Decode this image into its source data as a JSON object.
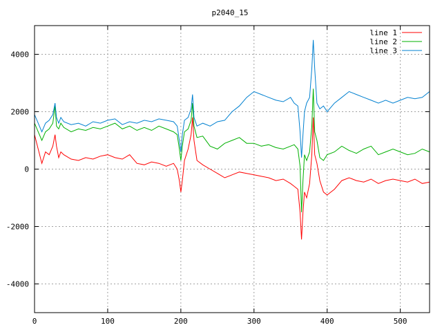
{
  "chart_data": {
    "type": "line",
    "title": "p2040_15",
    "xlabel": "",
    "ylabel": "",
    "xlim": [
      0,
      540
    ],
    "ylim": [
      -5000,
      5000
    ],
    "xticks": [
      0,
      100,
      200,
      300,
      400,
      500
    ],
    "yticks": [
      -4000,
      -2000,
      0,
      2000,
      4000
    ],
    "grid": true,
    "legend_position": "top-right",
    "series": [
      {
        "name": "line 1",
        "color": "#ff0000",
        "x": [
          0,
          5,
          10,
          15,
          20,
          25,
          28,
          30,
          33,
          36,
          40,
          50,
          60,
          70,
          80,
          90,
          100,
          110,
          120,
          130,
          140,
          150,
          160,
          170,
          180,
          190,
          195,
          198,
          200,
          202,
          205,
          210,
          214,
          216,
          218,
          222,
          230,
          240,
          250,
          260,
          270,
          280,
          290,
          300,
          310,
          320,
          330,
          340,
          350,
          355,
          360,
          363,
          365,
          367,
          369,
          372,
          376,
          379,
          381,
          383,
          386,
          390,
          395,
          400,
          410,
          420,
          430,
          440,
          450,
          460,
          470,
          480,
          490,
          500,
          510,
          520,
          530,
          540
        ],
        "y": [
          1200,
          700,
          200,
          600,
          500,
          800,
          1200,
          800,
          400,
          600,
          500,
          350,
          300,
          400,
          350,
          450,
          500,
          400,
          350,
          500,
          200,
          150,
          250,
          200,
          100,
          200,
          0,
          -400,
          -800,
          -400,
          300,
          700,
          1200,
          1800,
          1000,
          300,
          150,
          0,
          -150,
          -300,
          -200,
          -100,
          -150,
          -200,
          -250,
          -300,
          -400,
          -350,
          -500,
          -600,
          -700,
          -1500,
          -2450,
          -1500,
          -800,
          -1000,
          -500,
          500,
          1800,
          500,
          200,
          -400,
          -800,
          -900,
          -700,
          -400,
          -300,
          -400,
          -450,
          -350,
          -500,
          -400,
          -350,
          -400,
          -450,
          -350,
          -500,
          -450
        ]
      },
      {
        "name": "line 2",
        "color": "#00b000",
        "x": [
          0,
          5,
          10,
          15,
          20,
          25,
          28,
          30,
          33,
          36,
          40,
          50,
          60,
          70,
          80,
          90,
          100,
          110,
          120,
          130,
          140,
          150,
          160,
          170,
          180,
          190,
          195,
          198,
          200,
          202,
          205,
          210,
          214,
          216,
          218,
          222,
          230,
          240,
          250,
          260,
          270,
          280,
          290,
          300,
          310,
          320,
          330,
          340,
          350,
          355,
          360,
          363,
          365,
          367,
          369,
          372,
          376,
          379,
          381,
          383,
          386,
          390,
          395,
          400,
          410,
          420,
          430,
          440,
          450,
          460,
          470,
          480,
          490,
          500,
          510,
          520,
          530,
          540
        ],
        "y": [
          1600,
          1300,
          1000,
          1300,
          1400,
          1600,
          2200,
          1500,
          1400,
          1600,
          1450,
          1300,
          1400,
          1350,
          1450,
          1400,
          1500,
          1600,
          1400,
          1500,
          1350,
          1450,
          1350,
          1500,
          1400,
          1300,
          1200,
          700,
          300,
          800,
          1300,
          1400,
          1700,
          2300,
          1500,
          1100,
          1150,
          800,
          700,
          900,
          1000,
          1100,
          900,
          900,
          800,
          850,
          750,
          700,
          800,
          850,
          700,
          100,
          -1500,
          -400,
          500,
          300,
          600,
          1500,
          2800,
          1300,
          1000,
          400,
          300,
          500,
          600,
          800,
          650,
          550,
          700,
          800,
          500,
          600,
          700,
          600,
          500,
          550,
          700,
          600
        ]
      },
      {
        "name": "line 3",
        "color": "#0080d0",
        "x": [
          0,
          5,
          10,
          15,
          20,
          25,
          28,
          30,
          33,
          36,
          40,
          50,
          60,
          70,
          80,
          90,
          100,
          110,
          120,
          130,
          140,
          150,
          160,
          170,
          180,
          190,
          195,
          198,
          200,
          202,
          205,
          210,
          214,
          216,
          218,
          222,
          230,
          240,
          250,
          260,
          270,
          280,
          290,
          300,
          310,
          320,
          330,
          340,
          350,
          355,
          360,
          363,
          365,
          367,
          369,
          372,
          376,
          379,
          381,
          383,
          386,
          390,
          395,
          400,
          410,
          420,
          430,
          440,
          450,
          460,
          470,
          480,
          490,
          500,
          510,
          520,
          530,
          540
        ],
        "y": [
          1900,
          1600,
          1300,
          1600,
          1700,
          1900,
          2300,
          1800,
          1600,
          1800,
          1650,
          1550,
          1600,
          1500,
          1650,
          1600,
          1700,
          1750,
          1550,
          1650,
          1600,
          1700,
          1650,
          1750,
          1700,
          1650,
          1500,
          1000,
          600,
          1200,
          1700,
          1800,
          2100,
          2600,
          1800,
          1500,
          1600,
          1500,
          1650,
          1700,
          2000,
          2200,
          2500,
          2700,
          2600,
          2500,
          2400,
          2350,
          2500,
          2300,
          2200,
          1300,
          400,
          1200,
          2000,
          2300,
          2500,
          3500,
          4500,
          3500,
          2300,
          2100,
          2200,
          2000,
          2300,
          2500,
          2700,
          2600,
          2500,
          2400,
          2300,
          2400,
          2300,
          2400,
          2500,
          2450,
          2500,
          2700
        ]
      }
    ]
  }
}
